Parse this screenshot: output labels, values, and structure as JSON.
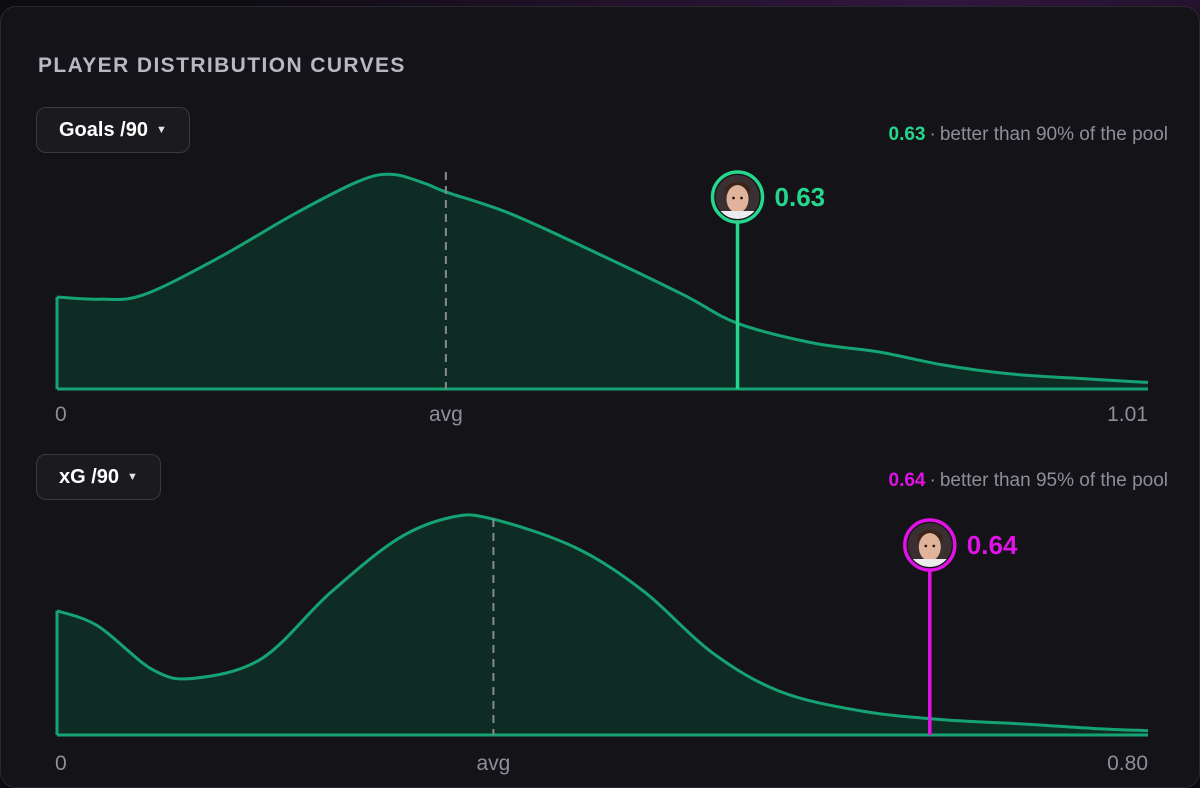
{
  "panel": {
    "title": "PLAYER DISTRIBUTION CURVES"
  },
  "colors": {
    "background": "#0d0c10",
    "panel": "#141317",
    "curve_stroke": "#16a374",
    "curve_fill": "#0e2c24",
    "avg_line": "#8a8a8a",
    "goals_accent": "#26d68d",
    "xg_accent": "#e012e6",
    "muted_text": "#8f8d98"
  },
  "icons": [
    "player-avatar-icon",
    "caret-down-icon"
  ],
  "charts": [
    {
      "selector_label": "Goals /90",
      "player_value_text": "0.63",
      "summary_text": "better than 90% of the pool",
      "marker_label": "0.63",
      "tick_min": "0",
      "tick_avg": "avg",
      "tick_max": "1.01"
    },
    {
      "selector_label": "xG /90",
      "player_value_text": "0.64",
      "summary_text": "better than 95% of the pool",
      "marker_label": "0.64",
      "tick_min": "0",
      "tick_avg": "avg",
      "tick_max": "0.80"
    }
  ],
  "chart_data": [
    {
      "type": "area",
      "metric": "Goals /90",
      "xlim": [
        0,
        1.01
      ],
      "x": [
        0,
        0.04,
        0.08,
        0.15,
        0.22,
        0.28,
        0.31,
        0.34,
        0.36,
        0.42,
        0.5,
        0.58,
        0.63,
        0.7,
        0.76,
        0.82,
        0.88,
        0.94,
        1.01
      ],
      "density": [
        0.42,
        0.41,
        0.43,
        0.6,
        0.8,
        0.95,
        0.98,
        0.94,
        0.9,
        0.8,
        0.62,
        0.43,
        0.3,
        0.21,
        0.17,
        0.11,
        0.07,
        0.05,
        0.03
      ],
      "avg": 0.36,
      "player_value": 0.63,
      "percentile": 90
    },
    {
      "type": "area",
      "metric": "xG /90",
      "xlim": [
        0,
        0.8
      ],
      "x": [
        0,
        0.03,
        0.07,
        0.1,
        0.15,
        0.2,
        0.25,
        0.29,
        0.32,
        0.38,
        0.43,
        0.48,
        0.53,
        0.59,
        0.65,
        0.71,
        0.76,
        0.8
      ],
      "density": [
        0.57,
        0.5,
        0.3,
        0.26,
        0.35,
        0.65,
        0.9,
        1.0,
        0.99,
        0.86,
        0.66,
        0.38,
        0.2,
        0.11,
        0.07,
        0.05,
        0.03,
        0.02
      ],
      "avg": 0.32,
      "player_value": 0.64,
      "percentile": 95
    }
  ]
}
